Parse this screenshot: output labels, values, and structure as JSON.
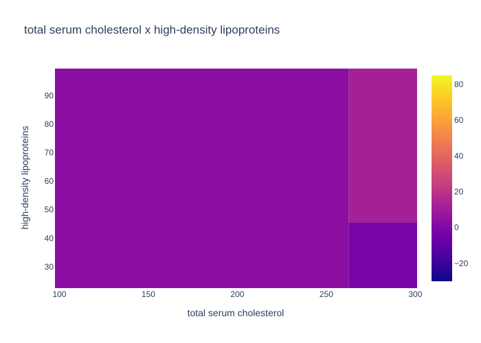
{
  "chart_data": {
    "type": "heatmap",
    "title": "total serum cholesterol x high-density lipoproteins",
    "xlabel": "total serum cholesterol",
    "ylabel": "high-density lipoproteins",
    "xlim": [
      97.5,
      301
    ],
    "ylim": [
      22.5,
      99.5
    ],
    "x_ticks": [
      100,
      150,
      200,
      250,
      300
    ],
    "y_ticks": [
      30,
      40,
      50,
      60,
      70,
      80,
      90
    ],
    "colorbar": {
      "range": [
        -30,
        85
      ],
      "ticks": [
        -20,
        0,
        20,
        40,
        60,
        80
      ],
      "colorscale": [
        "#0d0887",
        "#46039f",
        "#7201a8",
        "#9c179e",
        "#bd3786",
        "#d8576b",
        "#ed7953",
        "#fb9f3a",
        "#fdca26",
        "#f0f921"
      ]
    },
    "cells": [
      {
        "x0": 97.5,
        "x1": 262.5,
        "y0": 22.5,
        "y1": 99.5,
        "value": 3
      },
      {
        "x0": 262.5,
        "x1": 301,
        "y0": 45.5,
        "y1": 99.5,
        "value": 12
      },
      {
        "x0": 262.5,
        "x1": 301,
        "y0": 22.5,
        "y1": 45.5,
        "value": -2
      }
    ]
  }
}
